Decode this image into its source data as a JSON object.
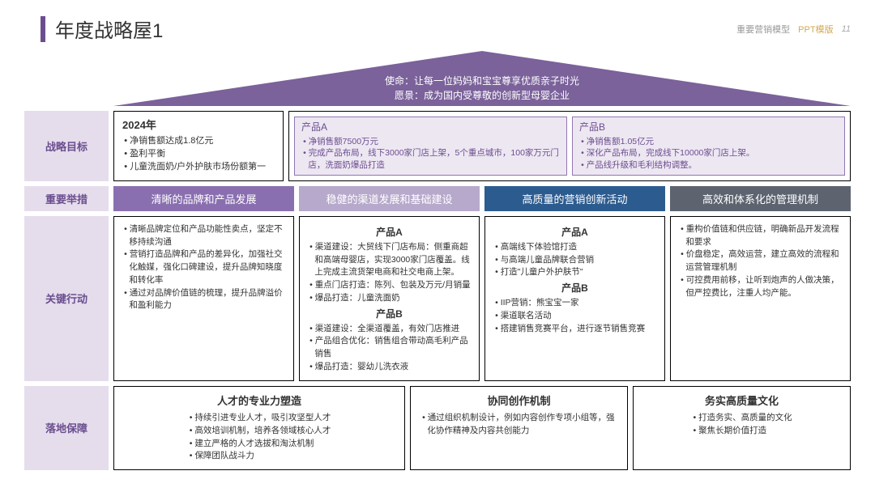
{
  "header": {
    "title": "年度战略屋1",
    "right1": "重要营销模型",
    "right2": "PPT模版",
    "page_num": "11",
    "title_bar_color": "#6b4e8f"
  },
  "roof": {
    "fill": "#7b629b",
    "line1": "使命：让每一位妈妈和宝宝尊享优质亲子时光",
    "line2": "愿景：成为国内受尊敬的创新型母婴企业"
  },
  "rows": {
    "goal": {
      "label": "战略目标",
      "left": {
        "year": "2024年",
        "items": [
          "净销售额达成1.8亿元",
          "盈利平衡",
          "儿童洗面奶/户外护肤市场份额第一"
        ]
      },
      "prodA": {
        "title": "产品A",
        "items": [
          "净销售额7500万元",
          "完成产品布局，线下3000家门店上架，5个重点城市，100家万元门店，洗面奶爆品打造"
        ]
      },
      "prodB": {
        "title": "产品B",
        "items": [
          "净销售额1.05亿元",
          "深化产品布局，完成线下10000家门店上架。",
          "产品线升级和毛利结构调整。"
        ]
      }
    },
    "initiative": {
      "label": "重要举措",
      "banners": [
        {
          "text": "清晰的品牌和产品发展",
          "color": "#8a6fb0"
        },
        {
          "text": "稳健的渠道发展和基础建设",
          "color": "#b7a9cb"
        },
        {
          "text": "高质量的营销创新活动",
          "color": "#2c5b8f"
        },
        {
          "text": "高效和体系化的管理机制",
          "color": "#5d6470"
        }
      ]
    },
    "action": {
      "label": "关键行动",
      "col1": {
        "items": [
          "清晰品牌定位和产品功能性卖点，坚定不移持续沟通",
          "营销打造品牌和产品的差异化，加强社交化触媒，强化口碑建设，提升品牌知晓度和转化率",
          "通过对品牌价值链的梳理，提升品牌溢价和盈利能力"
        ]
      },
      "col2": {
        "a_title": "产品A",
        "a_items": [
          "渠道建设：大贸线下门店布局：侧重商超和高端母婴店，实现3000家门店覆盖。线上完成主流货架电商和社交电商上架。",
          "重点门店打造：陈列、包装及万元/月销量",
          "爆品打造：儿童洗面奶"
        ],
        "b_title": "产品B",
        "b_items": [
          "渠道建设：全渠道覆盖，有效门店推进",
          "产品组合优化：销售组合带动高毛利产品销售",
          "爆品打造：婴幼儿洗衣液"
        ]
      },
      "col3": {
        "a_title": "产品A",
        "a_items": [
          "高端线下体验馆打造",
          "与高端儿童品牌联合营销",
          "打造\"儿童户外护肤节\""
        ],
        "b_title": "产品B",
        "b_items": [
          "IIP营销：熊宝宝一家",
          "渠道联名活动",
          "搭建销售竞赛平台，进行逐节销售竞赛"
        ]
      },
      "col4": {
        "items": [
          "重构价值链和供应链，明确新品开发流程和要求",
          "价盘稳定，高效运营，建立高效的流程和运营管理机制",
          "可控费用前移，让听到炮声的人做决策，但严控费比，注重人均产能。"
        ]
      }
    },
    "guarantee": {
      "label": "落地保障",
      "boxes": [
        {
          "title": "人才的专业力塑造",
          "items": [
            "持续引进专业人才，吸引攻坚型人才",
            "高效培训机制，培养各领域核心人才",
            "建立严格的人才选拔和淘汰机制",
            "保障团队战斗力"
          ]
        },
        {
          "title": "协同创作机制",
          "items": [
            "通过组织机制设计，例如内容创作专项小组等，强化协作精神及内容共创能力"
          ]
        },
        {
          "title": "务实高质量文化",
          "items": [
            "打造务实、高质量的文化",
            "聚焦长期价值打造"
          ]
        }
      ]
    }
  }
}
